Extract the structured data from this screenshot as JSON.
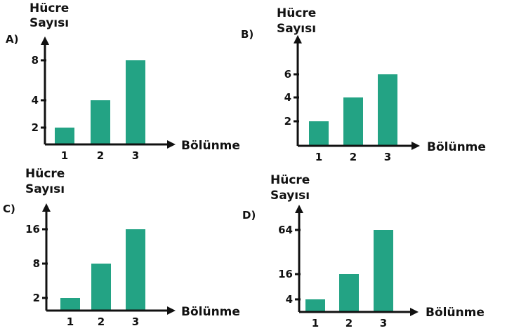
{
  "colors": {
    "bar": "#23a384",
    "axis": "#111111",
    "background": "#ffffff"
  },
  "chart_data": [
    {
      "type": "bar",
      "label": "A)",
      "ylabel_line1": "Hücre",
      "ylabel_line2": "Sayısı",
      "xlabel": "Bölünme",
      "categories": [
        "1",
        "2",
        "3"
      ],
      "values": [
        2,
        4,
        8
      ],
      "yticks": [
        2,
        4,
        8
      ],
      "ylim": [
        0,
        10
      ]
    },
    {
      "type": "bar",
      "label": "B)",
      "ylabel_line1": "Hücre",
      "ylabel_line2": "Sayısı",
      "xlabel": "Bölünme",
      "categories": [
        "1",
        "2",
        "3"
      ],
      "values": [
        2,
        4,
        6
      ],
      "yticks": [
        2,
        4,
        6
      ],
      "ylim": [
        0,
        8.5
      ]
    },
    {
      "type": "bar",
      "label": "C)",
      "ylabel_line1": "Hücre",
      "ylabel_line2": "Sayısı",
      "xlabel": "Bölünme",
      "categories": [
        "1",
        "2",
        "3"
      ],
      "values": [
        2,
        8,
        16
      ],
      "ytick_labels": [
        "2",
        "8",
        "16"
      ],
      "scale": "doubling"
    },
    {
      "type": "bar",
      "label": "D)",
      "ylabel_line1": "Hücre",
      "ylabel_line2": "Sayısı",
      "xlabel": "Bölünme",
      "categories": [
        "1",
        "2",
        "3"
      ],
      "values": [
        4,
        16,
        64
      ],
      "ytick_labels": [
        "4",
        "16",
        "64"
      ],
      "scale": "log"
    }
  ]
}
